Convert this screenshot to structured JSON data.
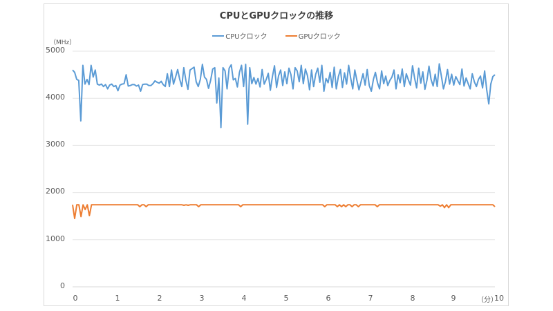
{
  "chart_data": {
    "type": "line",
    "title": "CPUとGPUクロックの推移",
    "xlabel": "（分）",
    "ylabel": "（MHz）",
    "xlim": [
      0,
      10
    ],
    "ylim": [
      0,
      5000
    ],
    "x_ticks": [
      "0",
      "1",
      "2",
      "3",
      "4",
      "5",
      "6",
      "7",
      "8",
      "9",
      "10"
    ],
    "y_ticks": [
      "0",
      "1000",
      "2000",
      "3000",
      "4000",
      "5000"
    ],
    "grid": true,
    "legend_position": "top",
    "series": [
      {
        "name": "CPUクロック",
        "color": "#5B9BD5",
        "x_step_min": 0.05,
        "values": [
          4600,
          4550,
          4400,
          4380,
          3520,
          4700,
          4300,
          4400,
          4290,
          4700,
          4450,
          4600,
          4300,
          4280,
          4300,
          4250,
          4290,
          4200,
          4280,
          4300,
          4250,
          4270,
          4160,
          4280,
          4300,
          4310,
          4500,
          4260,
          4270,
          4290,
          4290,
          4260,
          4280,
          4150,
          4290,
          4300,
          4300,
          4270,
          4270,
          4310,
          4370,
          4340,
          4320,
          4360,
          4290,
          4250,
          4520,
          4250,
          4600,
          4300,
          4450,
          4610,
          4400,
          4250,
          4650,
          4380,
          4190,
          4600,
          4630,
          4660,
          4350,
          4250,
          4400,
          4720,
          4450,
          4400,
          4210,
          4380,
          4620,
          4650,
          3900,
          4430,
          3380,
          4650,
          4580,
          4200,
          4640,
          4710,
          4390,
          4420,
          4240,
          4550,
          4700,
          4250,
          4720,
          3450,
          4650,
          4310,
          4440,
          4300,
          4420,
          4240,
          4610,
          4300,
          4400,
          4530,
          4170,
          4460,
          4690,
          4230,
          4480,
          4600,
          4270,
          4560,
          4310,
          4640,
          4500,
          4200,
          4650,
          4580,
          4350,
          4700,
          4310,
          4620,
          4480,
          4180,
          4600,
          4250,
          4510,
          4640,
          4340,
          4700,
          4150,
          4420,
          4330,
          4550,
          4230,
          4660,
          4200,
          4460,
          4610,
          4230,
          4540,
          4300,
          4700,
          4420,
          4200,
          4600,
          4380,
          4180,
          4350,
          4520,
          4280,
          4610,
          4270,
          4150,
          4400,
          4550,
          4330,
          4200,
          4580,
          4310,
          4470,
          4270,
          4380,
          4450,
          4600,
          4200,
          4500,
          4330,
          4620,
          4250,
          4520,
          4390,
          4280,
          4690,
          4430,
          4220,
          4640,
          4320,
          4560,
          4190,
          4380,
          4680,
          4400,
          4260,
          4510,
          4250,
          4730,
          4470,
          4200,
          4360,
          4610,
          4300,
          4510,
          4280,
          4460,
          4370,
          4290,
          4620,
          4260,
          4430,
          4310,
          4200,
          4520,
          4350,
          4250,
          4400,
          4470,
          4220,
          4580,
          4180,
          3880,
          4300,
          4460,
          4500
        ],
        "min_observed": 3380,
        "max_observed": 4790
      },
      {
        "name": "GPUクロック",
        "color": "#ED7D31",
        "x_step_min": 0.05,
        "values": [
          1740,
          1450,
          1740,
          1740,
          1490,
          1740,
          1640,
          1740,
          1510,
          1740,
          1740,
          1740,
          1740,
          1740,
          1740,
          1740,
          1740,
          1740,
          1740,
          1740,
          1740,
          1740,
          1740,
          1740,
          1740,
          1740,
          1740,
          1740,
          1740,
          1740,
          1740,
          1740,
          1700,
          1740,
          1740,
          1700,
          1740,
          1740,
          1740,
          1740,
          1740,
          1740,
          1740,
          1740,
          1740,
          1740,
          1740,
          1740,
          1740,
          1740,
          1740,
          1740,
          1740,
          1730,
          1740,
          1730,
          1740,
          1740,
          1740,
          1740,
          1700,
          1740,
          1740,
          1740,
          1740,
          1740,
          1740,
          1740,
          1740,
          1740,
          1740,
          1740,
          1740,
          1740,
          1740,
          1740,
          1740,
          1740,
          1740,
          1740,
          1700,
          1740,
          1740,
          1740,
          1740,
          1740,
          1740,
          1740,
          1740,
          1740,
          1740,
          1740,
          1740,
          1740,
          1740,
          1740,
          1740,
          1740,
          1740,
          1740,
          1740,
          1740,
          1740,
          1740,
          1740,
          1740,
          1740,
          1740,
          1740,
          1740,
          1740,
          1740,
          1740,
          1740,
          1740,
          1740,
          1740,
          1740,
          1740,
          1740,
          1700,
          1740,
          1740,
          1740,
          1740,
          1740,
          1700,
          1740,
          1700,
          1740,
          1700,
          1740,
          1740,
          1700,
          1740,
          1740,
          1700,
          1740,
          1740,
          1740,
          1740,
          1740,
          1740,
          1740,
          1740,
          1700,
          1740,
          1740,
          1740,
          1740,
          1740,
          1740,
          1740,
          1740,
          1740,
          1740,
          1740,
          1740,
          1740,
          1740,
          1740,
          1740,
          1740,
          1740,
          1740,
          1740,
          1740,
          1740,
          1740,
          1740,
          1740,
          1740,
          1740,
          1740,
          1740,
          1710,
          1740,
          1680,
          1740,
          1680,
          1740,
          1740,
          1740,
          1740,
          1740,
          1740,
          1740,
          1740,
          1740,
          1740,
          1740,
          1740,
          1740,
          1740,
          1740,
          1740,
          1740,
          1740,
          1740,
          1740,
          1740,
          1700
        ]
      }
    ]
  },
  "chart": {
    "title": "CPUとGPUクロックの推移",
    "y_unit": "（MHz）",
    "x_unit": "（分）",
    "legend": [
      {
        "label": "CPUクロック",
        "color": "#5B9BD5"
      },
      {
        "label": "GPUクロック",
        "color": "#ED7D31"
      }
    ],
    "y_ticks": [
      "5000",
      "4000",
      "3000",
      "2000",
      "1000",
      "0"
    ],
    "x_ticks": [
      "0",
      "1",
      "2",
      "3",
      "4",
      "5",
      "6",
      "7",
      "8",
      "9",
      "10"
    ]
  }
}
